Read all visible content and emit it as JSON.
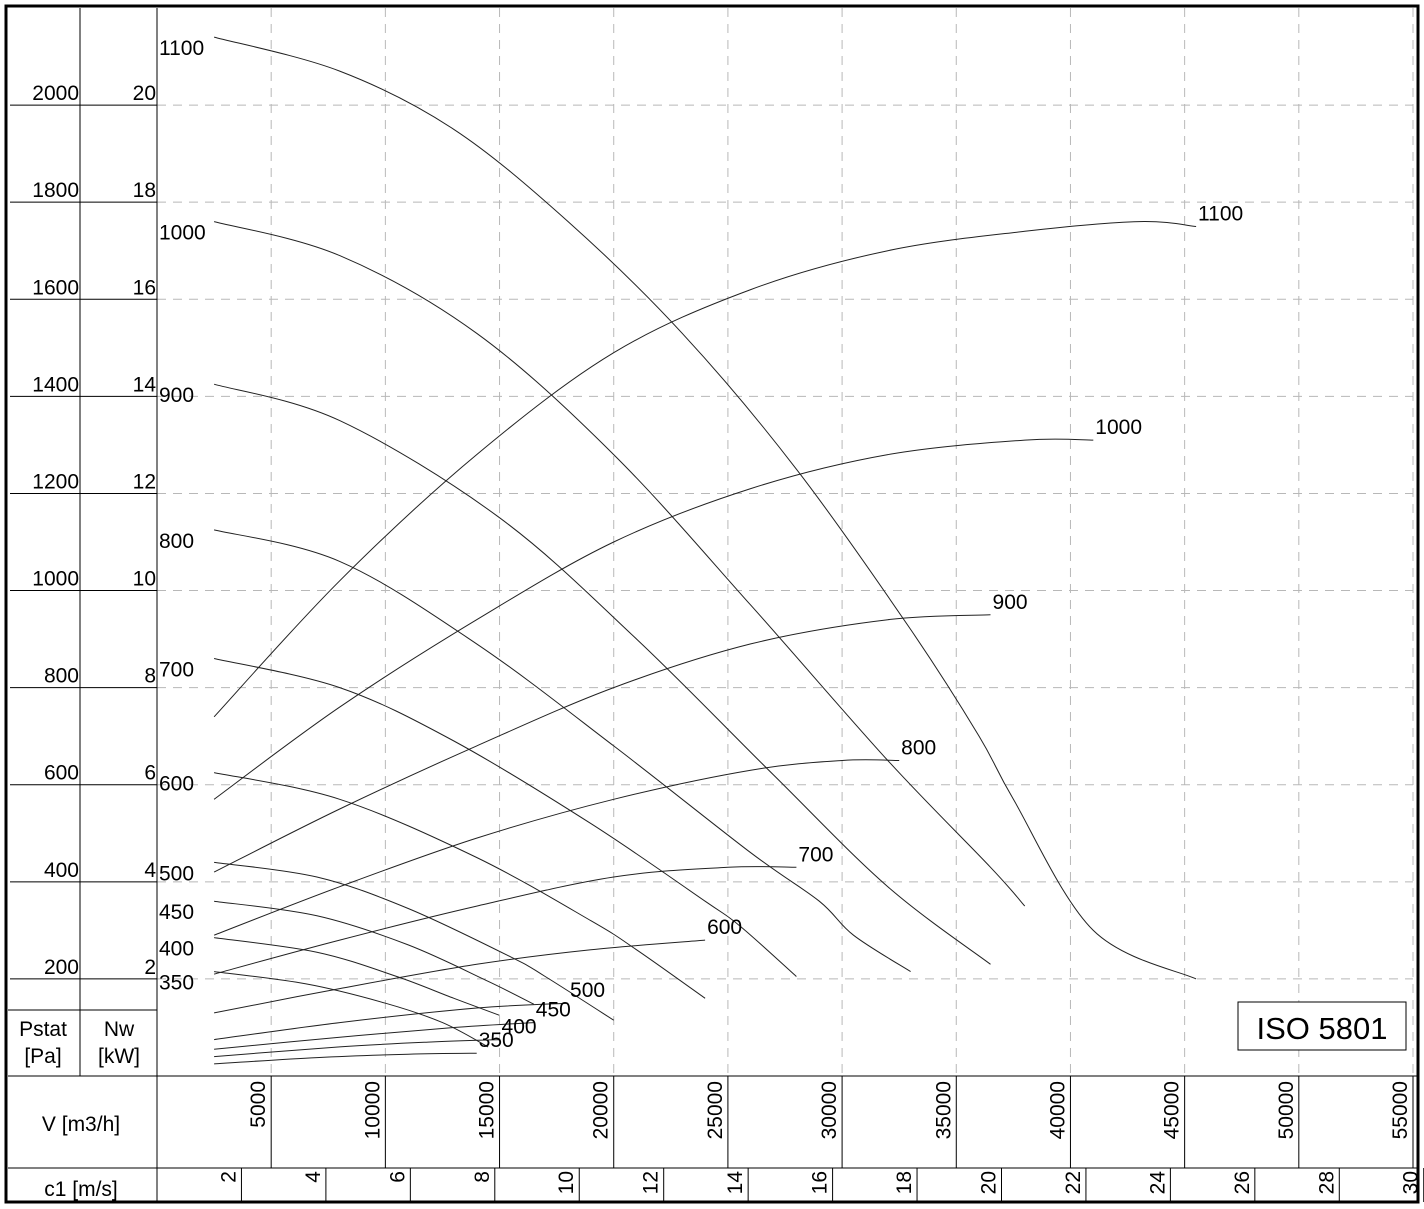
{
  "chart_data": {
    "type": "line",
    "title": "",
    "badge": "ISO 5801",
    "axes": {
      "pstat_label_line1": "Pstat",
      "pstat_label_line2": "[Pa]",
      "nw_label_line1": "Nw",
      "nw_label_line2": "[kW]",
      "v_label": "V [m3/h]",
      "c1_label": "c1 [m/s]",
      "pstat_ticks": [
        "200",
        "400",
        "600",
        "800",
        "1000",
        "1200",
        "1400",
        "1600",
        "1800",
        "2000"
      ],
      "nw_ticks": [
        "2",
        "4",
        "6",
        "8",
        "10",
        "12",
        "14",
        "16",
        "18",
        "20"
      ],
      "v_ticks": [
        "5000",
        "10000",
        "15000",
        "20000",
        "25000",
        "30000",
        "35000",
        "40000",
        "45000",
        "50000",
        "55000"
      ],
      "c1_ticks": [
        "2",
        "4",
        "6",
        "8",
        "10",
        "12",
        "14",
        "16",
        "18",
        "20",
        "22",
        "24",
        "26",
        "28",
        "30"
      ],
      "v_range": [
        0,
        55000
      ],
      "pstat_range": [
        0,
        2200
      ],
      "nw_range": [
        0,
        22
      ]
    },
    "grid": true,
    "pressure_curves": [
      {
        "label": "1100",
        "points": [
          [
            2500,
            2140
          ],
          [
            8000,
            2070
          ],
          [
            13000,
            1950
          ],
          [
            18000,
            1760
          ],
          [
            23000,
            1530
          ],
          [
            28000,
            1250
          ],
          [
            33000,
            920
          ],
          [
            36000,
            700
          ],
          [
            37500,
            570
          ],
          [
            41000,
            300
          ],
          [
            45500,
            200
          ]
        ]
      },
      {
        "label": "1000",
        "points": [
          [
            2500,
            1760
          ],
          [
            8000,
            1690
          ],
          [
            14000,
            1530
          ],
          [
            20000,
            1280
          ],
          [
            26000,
            970
          ],
          [
            32000,
            650
          ],
          [
            36500,
            430
          ],
          [
            38000,
            350
          ]
        ]
      },
      {
        "label": "900",
        "points": [
          [
            2500,
            1425
          ],
          [
            8000,
            1350
          ],
          [
            15000,
            1150
          ],
          [
            21000,
            900
          ],
          [
            27000,
            620
          ],
          [
            32000,
            390
          ],
          [
            36500,
            230
          ]
        ]
      },
      {
        "label": "800",
        "points": [
          [
            2500,
            1125
          ],
          [
            8000,
            1060
          ],
          [
            14000,
            890
          ],
          [
            20000,
            680
          ],
          [
            26000,
            460
          ],
          [
            29000,
            360
          ],
          [
            30500,
            290
          ],
          [
            33000,
            215
          ]
        ]
      },
      {
        "label": "700",
        "points": [
          [
            2500,
            860
          ],
          [
            8000,
            800
          ],
          [
            13000,
            690
          ],
          [
            19000,
            520
          ],
          [
            24000,
            360
          ],
          [
            25500,
            310
          ],
          [
            28000,
            205
          ]
        ]
      },
      {
        "label": "600",
        "points": [
          [
            2500,
            625
          ],
          [
            8000,
            570
          ],
          [
            14000,
            450
          ],
          [
            19000,
            320
          ],
          [
            21000,
            260
          ],
          [
            24000,
            160
          ]
        ]
      },
      {
        "label": "500",
        "points": [
          [
            2500,
            440
          ],
          [
            7000,
            410
          ],
          [
            11000,
            345
          ],
          [
            15500,
            245
          ],
          [
            17000,
            205
          ],
          [
            20000,
            115
          ]
        ]
      },
      {
        "label": "450",
        "points": [
          [
            2500,
            360
          ],
          [
            7000,
            330
          ],
          [
            11000,
            270
          ],
          [
            14500,
            195
          ],
          [
            16500,
            148
          ]
        ]
      },
      {
        "label": "400",
        "points": [
          [
            2500,
            285
          ],
          [
            7000,
            255
          ],
          [
            10500,
            205
          ],
          [
            13000,
            160
          ],
          [
            15000,
            125
          ]
        ]
      },
      {
        "label": "350",
        "points": [
          [
            2500,
            215
          ],
          [
            6500,
            190
          ],
          [
            10000,
            150
          ],
          [
            12500,
            110
          ],
          [
            14500,
            60
          ]
        ]
      }
    ],
    "power_curves": [
      {
        "label": "1100",
        "points": [
          [
            2500,
            7.4
          ],
          [
            8000,
            10.2
          ],
          [
            14000,
            12.8
          ],
          [
            20000,
            14.9
          ],
          [
            26000,
            16.2
          ],
          [
            32000,
            17.0
          ],
          [
            38000,
            17.4
          ],
          [
            43000,
            17.6
          ],
          [
            45500,
            17.5
          ]
        ]
      },
      {
        "label": "1000",
        "points": [
          [
            2500,
            5.7
          ],
          [
            8000,
            7.6
          ],
          [
            14000,
            9.4
          ],
          [
            20000,
            11.0
          ],
          [
            26000,
            12.1
          ],
          [
            32000,
            12.8
          ],
          [
            38000,
            13.1
          ],
          [
            41000,
            13.1
          ]
        ]
      },
      {
        "label": "900",
        "points": [
          [
            2500,
            4.2
          ],
          [
            8000,
            5.5
          ],
          [
            14000,
            6.8
          ],
          [
            20000,
            8.0
          ],
          [
            26000,
            8.9
          ],
          [
            32000,
            9.4
          ],
          [
            36500,
            9.5
          ]
        ]
      },
      {
        "label": "800",
        "points": [
          [
            2500,
            2.9
          ],
          [
            8000,
            3.9
          ],
          [
            14000,
            4.9
          ],
          [
            20000,
            5.7
          ],
          [
            26000,
            6.3
          ],
          [
            30000,
            6.5
          ],
          [
            32500,
            6.5
          ]
        ]
      },
      {
        "label": "700",
        "points": [
          [
            2500,
            2.1
          ],
          [
            8000,
            2.8
          ],
          [
            14000,
            3.5
          ],
          [
            20000,
            4.1
          ],
          [
            25000,
            4.3
          ],
          [
            28000,
            4.3
          ]
        ]
      },
      {
        "label": "600",
        "points": [
          [
            2500,
            1.3
          ],
          [
            8000,
            1.8
          ],
          [
            14000,
            2.3
          ],
          [
            19000,
            2.6
          ],
          [
            24000,
            2.8
          ]
        ]
      },
      {
        "label": "500",
        "points": [
          [
            2500,
            0.75
          ],
          [
            8000,
            1.1
          ],
          [
            14000,
            1.4
          ],
          [
            18000,
            1.5
          ]
        ]
      },
      {
        "label": "450",
        "points": [
          [
            2500,
            0.55
          ],
          [
            8000,
            0.8
          ],
          [
            13000,
            1.0
          ],
          [
            16500,
            1.1
          ]
        ]
      },
      {
        "label": "400",
        "points": [
          [
            2500,
            0.4
          ],
          [
            8000,
            0.6
          ],
          [
            12000,
            0.7
          ],
          [
            15000,
            0.75
          ]
        ]
      },
      {
        "label": "350",
        "points": [
          [
            2500,
            0.25
          ],
          [
            7000,
            0.38
          ],
          [
            11000,
            0.45
          ],
          [
            14000,
            0.47
          ]
        ]
      }
    ]
  }
}
